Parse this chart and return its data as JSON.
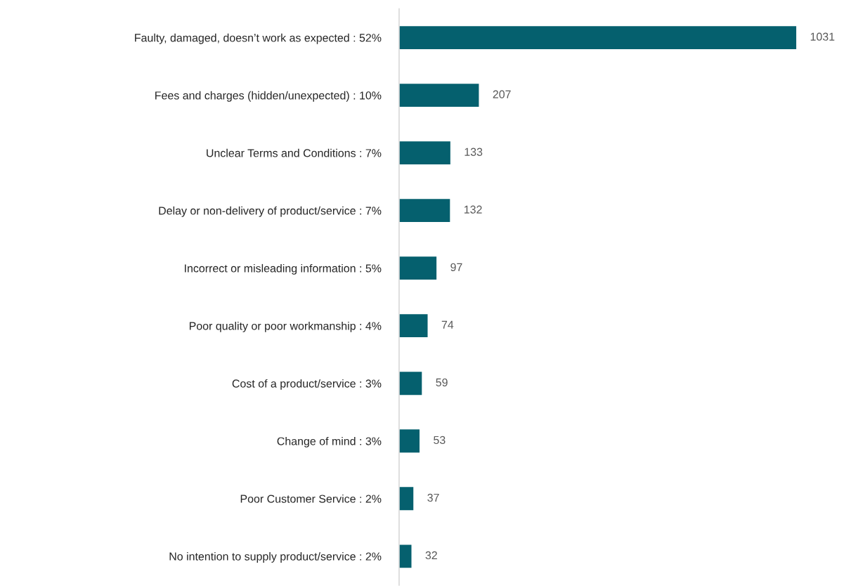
{
  "chart_data": {
    "type": "bar",
    "orientation": "horizontal",
    "data_labels": true,
    "color": "#05606e",
    "categories": [
      "Faulty, damaged, doesn’t work as expected : 52%",
      "Fees and charges (hidden/unexpected) : 10%",
      "Unclear Terms and Conditions : 7%",
      "Delay or non-delivery of product/service : 7%",
      "Incorrect or misleading information : 5%",
      "Poor quality or poor workmanship : 4%",
      "Cost of a product/service : 3%",
      "Change of mind : 3%",
      "Poor Customer Service : 2%",
      "No intention to supply product/service : 2%"
    ],
    "values": [
      1031,
      207,
      133,
      132,
      97,
      74,
      59,
      53,
      37,
      32
    ]
  }
}
